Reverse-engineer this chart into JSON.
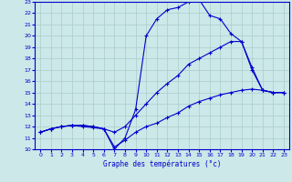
{
  "title": "Graphe des températures (°c)",
  "bg_color": "#cce8e8",
  "grid_color": "#aacccc",
  "line_color": "#0000cc",
  "marker": "+",
  "x_min": 0,
  "x_max": 23,
  "y_min": 10,
  "y_max": 23,
  "hours": [
    0,
    1,
    2,
    3,
    4,
    5,
    6,
    7,
    8,
    9,
    10,
    11,
    12,
    13,
    14,
    15,
    16,
    17,
    18,
    19,
    20,
    21,
    22,
    23
  ],
  "max_temps": [
    11.5,
    11.8,
    12.0,
    12.1,
    12.1,
    12.0,
    11.8,
    10.0,
    11.0,
    13.5,
    20.0,
    21.5,
    22.3,
    22.5,
    23.0,
    23.2,
    21.8,
    21.5,
    20.2,
    19.5,
    17.0,
    15.2,
    15.0,
    15.0
  ],
  "avg_temps": [
    11.5,
    11.8,
    12.0,
    12.1,
    12.0,
    11.9,
    11.8,
    11.5,
    12.0,
    13.0,
    14.0,
    15.0,
    15.8,
    16.5,
    17.5,
    18.0,
    18.5,
    19.0,
    19.5,
    19.5,
    17.2,
    15.2,
    15.0,
    15.0
  ],
  "min_temps": [
    11.5,
    11.8,
    12.0,
    12.1,
    12.1,
    12.0,
    11.8,
    10.2,
    10.8,
    11.5,
    12.0,
    12.3,
    12.8,
    13.2,
    13.8,
    14.2,
    14.5,
    14.8,
    15.0,
    15.2,
    15.3,
    15.2,
    15.0,
    15.0
  ]
}
